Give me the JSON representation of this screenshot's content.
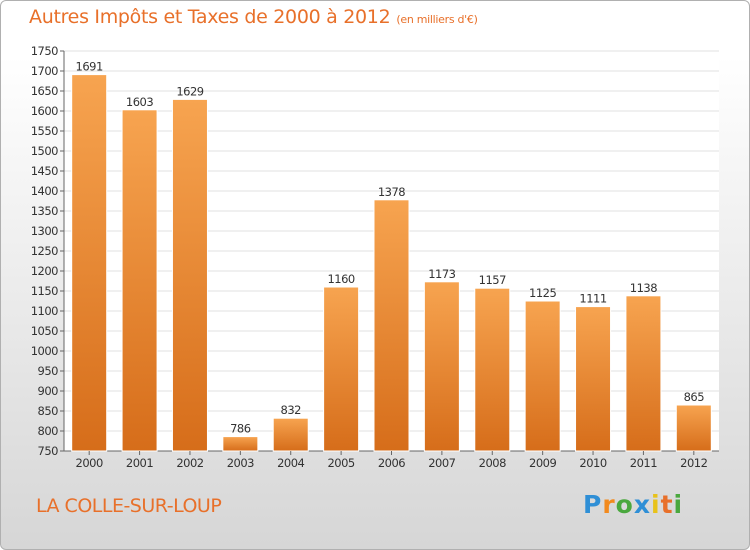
{
  "header": {
    "title": "Autres Impôts et Taxes de 2000 à 2012",
    "unit": "(en milliers d'€)"
  },
  "footer": {
    "place": "LA COLLE-SUR-LOUP",
    "logo": [
      "P",
      "r",
      "o",
      "x",
      "i",
      "t",
      "i"
    ],
    "logo_colors": [
      "#2f8fd6",
      "#f28a1e",
      "#4aa83e",
      "#2f8fd6",
      "#e8c21a",
      "#e8702a",
      "#4aa83e"
    ]
  },
  "colors": {
    "bar_top": "#f7a450",
    "bar_bottom": "#d66d1a",
    "grid": "#e2e2e2",
    "text": "#333333",
    "accent": "#e8702a"
  },
  "chart_data": {
    "type": "bar",
    "categories": [
      "2000",
      "2001",
      "2002",
      "2003",
      "2004",
      "2005",
      "2006",
      "2007",
      "2008",
      "2009",
      "2010",
      "2011",
      "2012"
    ],
    "values": [
      1691,
      1603,
      1629,
      786,
      832,
      1160,
      1378,
      1173,
      1157,
      1125,
      1111,
      1138,
      865
    ],
    "ylim": [
      750,
      1750
    ],
    "ytick_step": 50,
    "grid": true
  }
}
